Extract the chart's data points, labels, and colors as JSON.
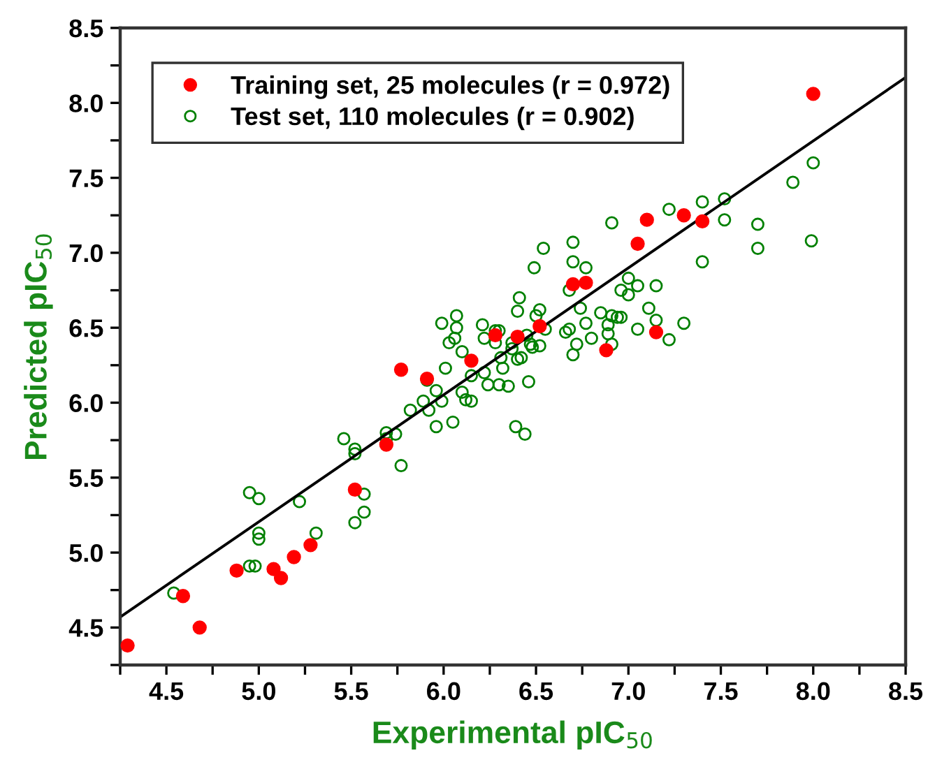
{
  "chart_data": {
    "type": "scatter",
    "xlabel": "Experimental pIC$_{50}$",
    "ylabel": "Predicted pIC$_{50}$",
    "xlim": [
      4.25,
      8.5
    ],
    "ylim": [
      4.25,
      8.5
    ],
    "xticks": [
      {
        "value": 4.25,
        "label": null
      },
      4.5,
      {
        "value": 4.75,
        "label": null
      },
      {
        "value": 5,
        "label": "5.0"
      },
      {
        "value": 5.25,
        "label": null
      },
      5.5,
      {
        "value": 5.75,
        "label": null
      },
      {
        "value": 6,
        "label": "6.0"
      },
      {
        "value": 6.25,
        "label": null
      },
      6.5,
      {
        "value": 6.75,
        "label": null
      },
      {
        "value": 7,
        "label": "7.0"
      },
      {
        "value": 7.25,
        "label": null
      },
      7.5,
      {
        "value": 7.75,
        "label": null
      },
      {
        "value": 8,
        "label": "8.0"
      },
      {
        "value": 8.25,
        "label": null
      },
      8.5
    ],
    "yticks": [
      {
        "value": 4.25,
        "label": null
      },
      4.5,
      {
        "value": 4.75,
        "label": null
      },
      {
        "value": 5,
        "label": "5.0"
      },
      {
        "value": 5.25,
        "label": null
      },
      5.5,
      {
        "value": 5.75,
        "label": null
      },
      {
        "value": 6,
        "label": "6.0"
      },
      {
        "value": 6.25,
        "label": null
      },
      6.5,
      {
        "value": 6.75,
        "label": null
      },
      {
        "value": 7,
        "label": "7.0"
      },
      {
        "value": 7.25,
        "label": null
      },
      7.5,
      {
        "value": 7.75,
        "label": null
      },
      {
        "value": 8,
        "label": "8.0"
      },
      {
        "value": 8.25,
        "label": null
      },
      8.5
    ],
    "grid": false,
    "legend": "top left",
    "series": [
      {
        "name": "Training set, 25 molecules (r = 0.972)",
        "color": "#ff0000",
        "marker": "circle",
        "x": [
          4.29,
          4.59,
          4.68,
          4.88,
          5.08,
          5.12,
          5.19,
          5.28,
          5.52,
          5.69,
          5.77,
          5.91,
          6.15,
          6.28,
          6.4,
          6.52,
          6.7,
          6.77,
          6.88,
          7.05,
          7.1,
          7.3,
          7.4,
          7.15,
          8.0
        ],
        "values": [
          4.38,
          4.71,
          4.5,
          4.88,
          4.89,
          4.83,
          4.97,
          5.05,
          5.42,
          5.72,
          6.22,
          6.16,
          6.28,
          6.45,
          6.44,
          6.51,
          6.79,
          6.8,
          6.35,
          7.06,
          7.22,
          7.25,
          7.21,
          6.47,
          8.06
        ]
      },
      {
        "name": "Test set, 110 molecules (r = 0.902)",
        "color": "#008000",
        "marker": "circle",
        "x": [
          4.54,
          4.95,
          5.0,
          5.22,
          5.0,
          5.0,
          4.95,
          4.98,
          5.31,
          5.46,
          5.52,
          5.52,
          5.57,
          5.57,
          5.52,
          5.69,
          5.69,
          5.77,
          5.74,
          5.82,
          5.89,
          5.91,
          5.92,
          5.96,
          5.96,
          5.99,
          6.01,
          6.05,
          6.1,
          6.12,
          6.15,
          6.15,
          6.1,
          6.03,
          6.06,
          5.99,
          6.07,
          6.07,
          6.21,
          6.22,
          6.22,
          6.24,
          6.28,
          6.3,
          6.28,
          6.3,
          6.35,
          6.32,
          6.31,
          6.37,
          6.37,
          6.4,
          6.42,
          6.4,
          6.41,
          6.39,
          6.44,
          6.46,
          6.45,
          6.47,
          6.48,
          6.52,
          6.55,
          6.5,
          6.52,
          6.49,
          6.54,
          6.66,
          6.68,
          6.7,
          6.72,
          6.74,
          6.77,
          6.8,
          6.85,
          6.89,
          6.89,
          6.91,
          6.7,
          6.7,
          6.77,
          6.68,
          6.91,
          7.0,
          6.96,
          7.0,
          7.05,
          7.15,
          6.94,
          6.96,
          6.91,
          7.05,
          7.11,
          7.15,
          7.22,
          7.3,
          7.22,
          7.4,
          7.52,
          7.52,
          7.4,
          7.7,
          7.7,
          7.89,
          7.99,
          8.0
        ],
        "values": [
          4.73,
          5.4,
          5.36,
          5.34,
          5.13,
          5.09,
          4.91,
          4.91,
          5.13,
          5.76,
          5.69,
          5.66,
          5.39,
          5.27,
          5.2,
          5.8,
          5.76,
          5.58,
          5.79,
          5.95,
          6.01,
          6.15,
          5.95,
          6.08,
          5.84,
          6.01,
          6.23,
          5.87,
          6.07,
          6.02,
          6.01,
          6.18,
          6.34,
          6.4,
          6.43,
          6.53,
          6.58,
          6.5,
          6.52,
          6.43,
          6.2,
          6.12,
          6.48,
          6.48,
          6.4,
          6.12,
          6.11,
          6.23,
          6.3,
          6.4,
          6.36,
          6.29,
          6.3,
          6.61,
          6.7,
          5.84,
          5.79,
          6.14,
          6.45,
          6.39,
          6.37,
          6.38,
          6.49,
          6.58,
          6.62,
          6.9,
          7.03,
          6.47,
          6.49,
          6.32,
          6.39,
          6.63,
          6.53,
          6.43,
          6.6,
          6.52,
          6.46,
          6.58,
          7.07,
          6.94,
          6.9,
          6.75,
          7.2,
          6.83,
          6.75,
          6.72,
          6.78,
          6.78,
          6.57,
          6.57,
          6.39,
          6.49,
          6.63,
          6.55,
          6.42,
          6.53,
          7.29,
          7.34,
          7.36,
          7.22,
          6.94,
          7.19,
          7.03,
          7.47,
          7.08,
          7.6
        ]
      },
      {
        "type": "line",
        "color": "#000000",
        "marker": "none",
        "x": [
          4.25,
          8.5
        ],
        "values": [
          4.57,
          8.17
        ]
      }
    ]
  }
}
